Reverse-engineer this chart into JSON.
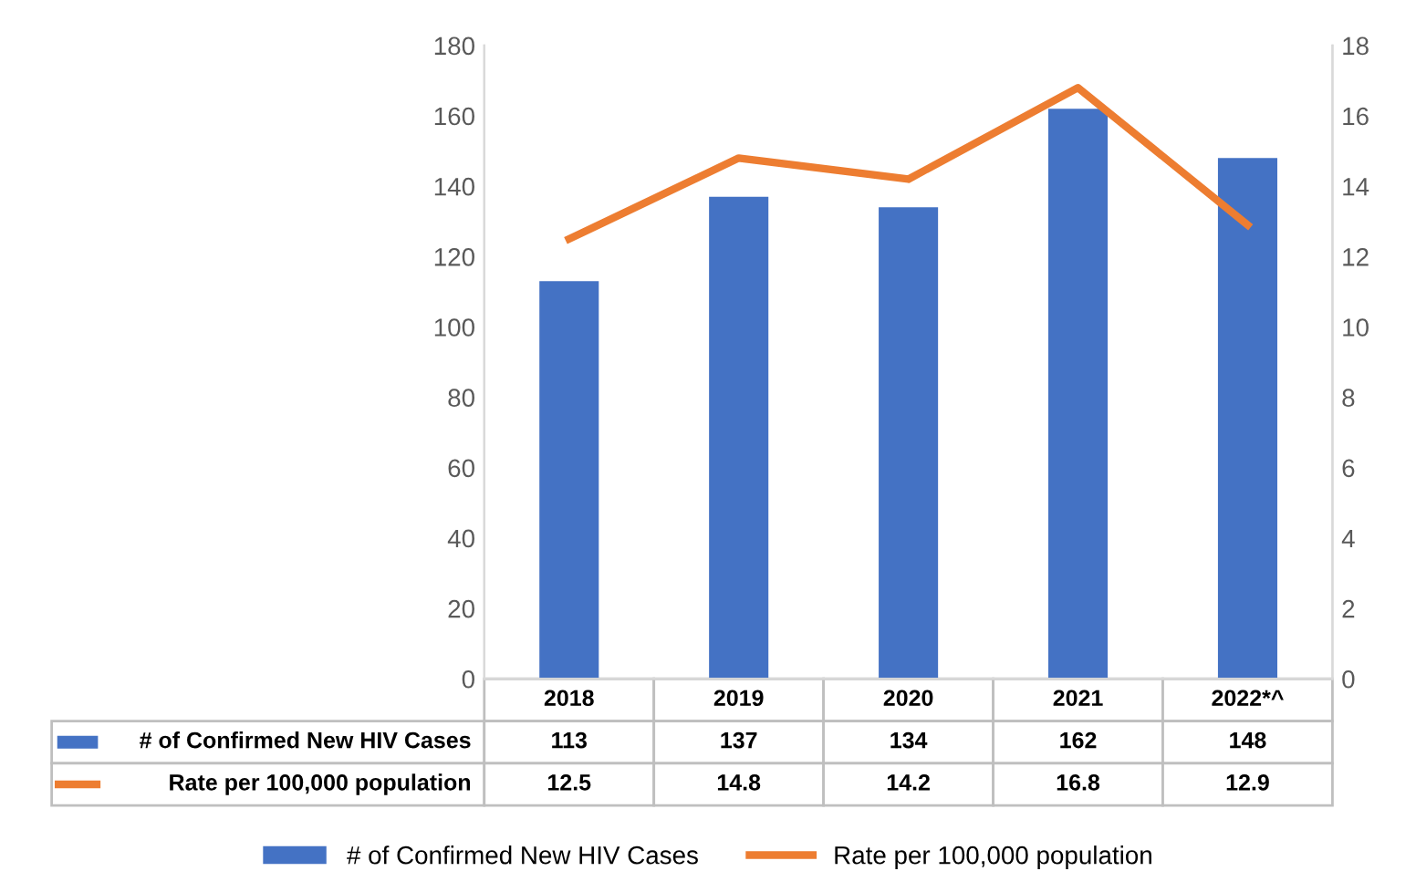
{
  "chart_data": {
    "type": "bar",
    "categories": [
      "2018",
      "2019",
      "2020",
      "2021",
      "2022*^"
    ],
    "series": [
      {
        "name": "# of Confirmed New HIV Cases",
        "color": "#4472c4",
        "values": [
          113,
          137,
          134,
          162,
          148
        ]
      },
      {
        "name": "Rate per 100,000 population",
        "color": "#ed7d31",
        "type": "line",
        "axis": "y2",
        "values": [
          12.5,
          14.8,
          14.2,
          16.8,
          12.9
        ]
      }
    ],
    "ylim": [
      0,
      180
    ],
    "yticks": [
      0,
      20,
      40,
      60,
      80,
      100,
      120,
      140,
      160,
      180
    ],
    "y2lim": [
      0,
      18
    ],
    "y2ticks": [
      0,
      2,
      4,
      6,
      8,
      10,
      12,
      14,
      16,
      18
    ],
    "data_labels": true,
    "legend": "bottom",
    "grid": false,
    "marker": "none",
    "line_style": "solid"
  }
}
